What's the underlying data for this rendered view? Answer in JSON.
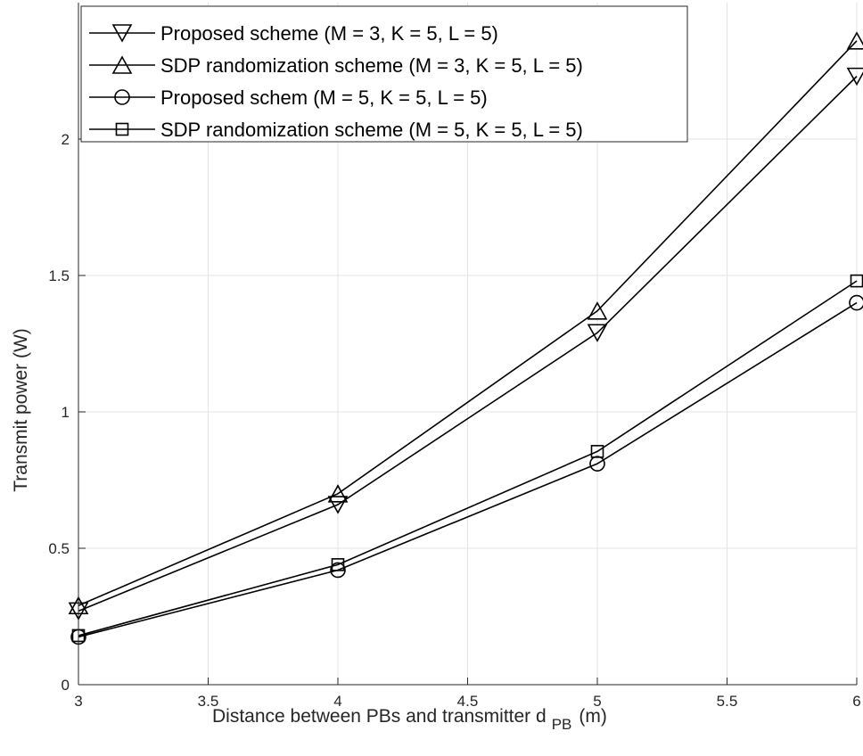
{
  "chart_data": {
    "type": "line",
    "title": "",
    "xlabel": "Distance between PBs and transmitter d",
    "xlabel_subscript": "PB",
    "xlabel_unit": "(m)",
    "ylabel": "Transmit power (W)",
    "xlim": [
      3,
      6
    ],
    "ylim": [
      0,
      2.5
    ],
    "xticks": [
      3,
      3.5,
      4,
      4.5,
      5,
      5.5,
      6
    ],
    "xtick_labels": [
      "3",
      "3.5",
      "4",
      "4.5",
      "5",
      "5.5",
      "6"
    ],
    "yticks": [
      0,
      0.5,
      1,
      1.5,
      2
    ],
    "ytick_labels": [
      "0",
      "0.5",
      "1",
      "1.5",
      "2"
    ],
    "grid": true,
    "legend_position": "top-left",
    "x": [
      3,
      4,
      5,
      6
    ],
    "series": [
      {
        "name": "Proposed scheme (M = 3, K = 5, L = 5)",
        "marker": "triangle-down",
        "color": "#000000",
        "values": [
          0.27,
          0.66,
          1.29,
          2.23
        ]
      },
      {
        "name": "SDP randomization scheme (M = 3, K = 5, L = 5)",
        "marker": "triangle-up",
        "color": "#000000",
        "values": [
          0.29,
          0.7,
          1.37,
          2.36
        ]
      },
      {
        "name": "Proposed schem (M = 5, K = 5, L = 5)",
        "marker": "circle",
        "color": "#000000",
        "values": [
          0.175,
          0.42,
          0.81,
          1.4
        ]
      },
      {
        "name": "SDP randomization scheme (M = 5, K = 5, L = 5)",
        "marker": "square",
        "color": "#000000",
        "values": [
          0.18,
          0.44,
          0.855,
          1.48
        ]
      }
    ]
  }
}
